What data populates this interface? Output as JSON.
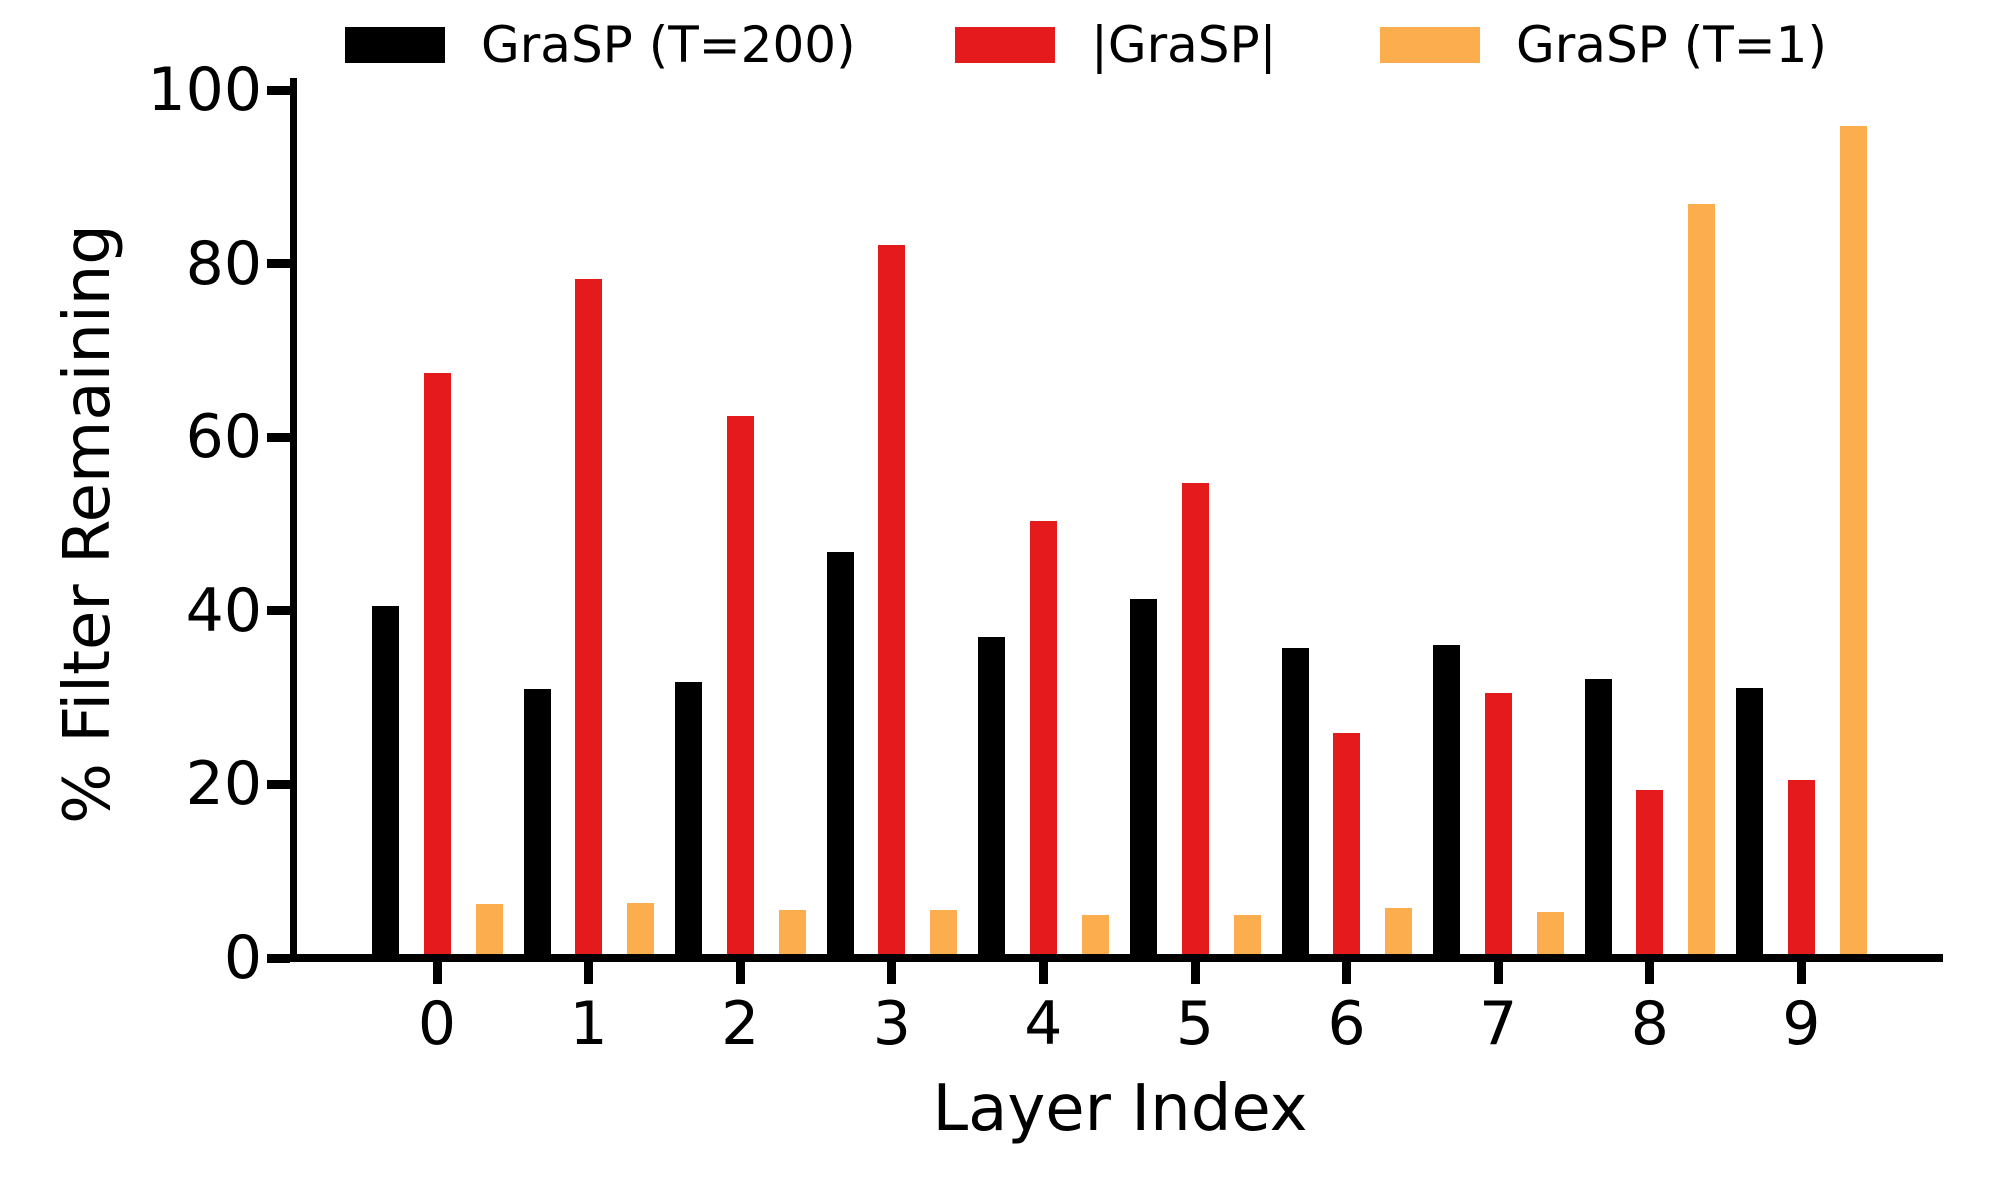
{
  "chart_data": {
    "type": "bar",
    "title": "",
    "xlabel": "Layer Index",
    "ylabel": "% Filter Remaining",
    "categories": [
      "0",
      "1",
      "2",
      "3",
      "4",
      "5",
      "6",
      "7",
      "8",
      "9"
    ],
    "series": [
      {
        "name": "GraSP (T=200)",
        "color": "#000000",
        "values": [
          40.6,
          31.0,
          31.8,
          46.8,
          37.0,
          41.4,
          35.7,
          36.1,
          32.2,
          31.1
        ]
      },
      {
        "name": "|GraSP|",
        "color": "#e41a1c",
        "values": [
          67.4,
          78.2,
          62.4,
          82.1,
          50.4,
          54.7,
          25.9,
          30.5,
          19.3,
          20.5
        ]
      },
      {
        "name": "GraSP (T=1)",
        "color": "#fcae4f",
        "values": [
          6.2,
          6.3,
          5.5,
          5.5,
          4.9,
          4.9,
          5.8,
          5.3,
          86.9,
          95.8
        ]
      }
    ],
    "ylim": [
      0,
      100
    ],
    "yticks": [
      0,
      20,
      40,
      60,
      80,
      100
    ],
    "grid": false,
    "legend_position": "top",
    "background_color": "#ffffff",
    "axis_color": "#000000"
  }
}
